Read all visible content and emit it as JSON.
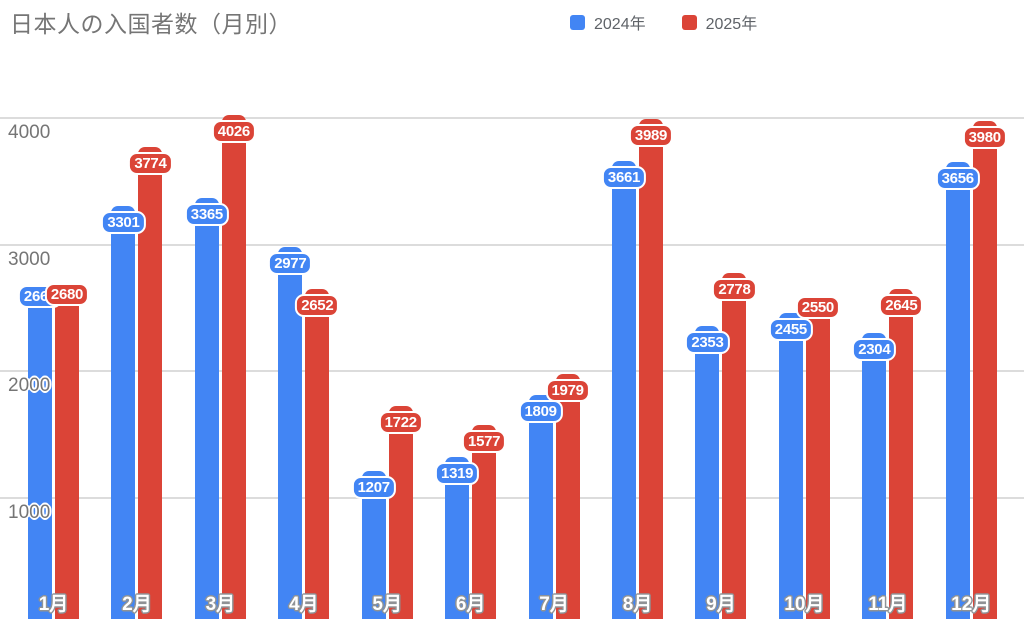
{
  "header": {
    "title": "日本人の入国者数（月別）"
  },
  "legend": {
    "items": [
      {
        "label": "2024年",
        "color": "#4285F4"
      },
      {
        "label": "2025年",
        "color": "#DB4437"
      }
    ]
  },
  "chart_data": {
    "type": "bar",
    "title": "日本人の入国者数（月別）",
    "categories": [
      "1月",
      "2月",
      "3月",
      "4月",
      "5月",
      "6月",
      "7月",
      "8月",
      "9月",
      "10月",
      "11月",
      "12月"
    ],
    "series": [
      {
        "name": "2024年",
        "color": "#4285F4",
        "values": [
          2662,
          3301,
          3365,
          2977,
          1207,
          1319,
          1809,
          3661,
          2353,
          2455,
          2304,
          3656
        ]
      },
      {
        "name": "2025年",
        "color": "#DB4437",
        "values": [
          2680,
          3774,
          4026,
          2652,
          1722,
          1577,
          1979,
          3989,
          2778,
          2550,
          2645,
          3980
        ]
      }
    ],
    "y_ticks": [
      1000,
      2000,
      3000,
      4000
    ],
    "ylim": [
      0,
      4150
    ],
    "grid": true,
    "value_labels_shown": true,
    "legend_position": "top-center",
    "axis_text_color": "#757575",
    "grid_color": "#dcdcdc",
    "background_color": "#ffffff",
    "label_offsets": [
      {
        "series": 0,
        "index": 0,
        "dy": -7
      },
      {
        "series": 1,
        "index": 0,
        "dy": -7
      },
      {
        "series": 1,
        "index": 9,
        "dy": -10
      }
    ]
  }
}
